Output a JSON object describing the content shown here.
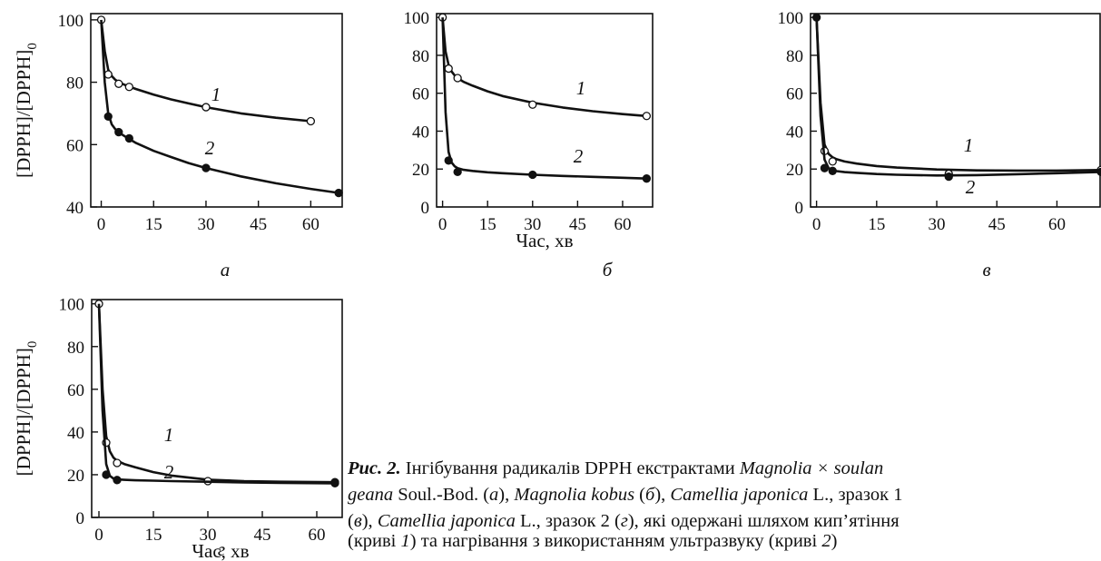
{
  "figure": {
    "ylabel": "[DPPH]/[DPPH]",
    "ylabel_sub": "0",
    "xlabel": "Час, хв",
    "caption": {
      "label": "Рис. 2.",
      "line1_text": " Інгібування радикалів DPPH екстрактами ",
      "line1_species": "Magnolia × soulan",
      "line2_species_end": "geana",
      "line2_text": " Soul.-Bod. (",
      "line2_a": "а",
      "line2_text2": "), ",
      "line2_species2": "Magnolia kobus",
      "line2_text3": " (",
      "line2_b": "б",
      "line2_text4": "), ",
      "line2_species3": "Camellia japonica",
      "line2_text5": " L., зразок 1",
      "line3_text0": "(",
      "line3_v": "в",
      "line3_text1": "), ",
      "line3_species": "Camellia japonica",
      "line3_text2": " L., зразок 2 (",
      "line3_g": "г",
      "line3_text3": "), які одержані шляхом кип’ятіння",
      "line4_text0": "(криві ",
      "line4_c1": "1",
      "line4_text1": ") та нагрівання з використанням ультразвуку (криві ",
      "line4_c2": "2",
      "line4_text2": ")"
    }
  },
  "chart_data": [
    {
      "type": "line",
      "panel": "а",
      "xticks": [
        0,
        15,
        30,
        45,
        60
      ],
      "yticks": [
        40,
        60,
        80,
        100
      ],
      "xlim": [
        -3,
        69
      ],
      "ylim": [
        40,
        102
      ],
      "series": [
        {
          "name": "1",
          "marker": "open",
          "x": [
            0,
            2,
            5,
            8,
            30,
            60
          ],
          "y": [
            100,
            82.5,
            79.5,
            78.5,
            72,
            67.5
          ],
          "curve_x": [
            0,
            1,
            2,
            3,
            4,
            5,
            6,
            8,
            10,
            15,
            20,
            25,
            30,
            40,
            50,
            60
          ],
          "curve_y": [
            100,
            90,
            84,
            82,
            80.8,
            80.1,
            79.5,
            78.6,
            77.8,
            76,
            74.5,
            73.2,
            72,
            70,
            68.6,
            67.5
          ]
        },
        {
          "name": "2",
          "marker": "filled",
          "x": [
            2,
            5,
            8,
            30,
            68
          ],
          "y": [
            69,
            64,
            62,
            52.5,
            44.5
          ],
          "curve_x": [
            0,
            1,
            2,
            3,
            4,
            5,
            6,
            8,
            10,
            15,
            20,
            25,
            30,
            40,
            50,
            60,
            68
          ],
          "curve_y": [
            100,
            80,
            70,
            66.5,
            65,
            64,
            63.2,
            61.8,
            60.5,
            58,
            56,
            54.1,
            52.5,
            49.8,
            47.6,
            45.8,
            44.5
          ]
        }
      ]
    },
    {
      "type": "line",
      "panel": "б",
      "xticks": [
        0,
        15,
        30,
        45,
        60
      ],
      "yticks": [
        0,
        20,
        40,
        60,
        80,
        100
      ],
      "xlim": [
        -2,
        70
      ],
      "ylim": [
        0,
        102
      ],
      "series": [
        {
          "name": "1",
          "marker": "open",
          "x": [
            0,
            2,
            5,
            30,
            68
          ],
          "y": [
            100,
            73,
            68,
            54,
            48
          ],
          "curve_x": [
            0,
            1,
            2,
            3,
            4,
            5,
            7,
            10,
            15,
            20,
            30,
            40,
            50,
            60,
            68
          ],
          "curve_y": [
            100,
            82,
            75,
            71.5,
            69.5,
            68,
            66,
            64,
            61,
            58.5,
            55,
            52.5,
            50.5,
            49,
            48
          ]
        },
        {
          "name": "2",
          "marker": "filled",
          "x": [
            2,
            5,
            30,
            68
          ],
          "y": [
            24.5,
            18.5,
            17,
            15
          ],
          "curve_x": [
            0,
            1,
            2,
            3,
            4,
            5,
            7,
            10,
            15,
            20,
            30,
            40,
            50,
            60,
            68
          ],
          "curve_y": [
            100,
            50,
            29,
            23.5,
            21.5,
            20.5,
            19.6,
            19,
            18.3,
            17.8,
            17,
            16.4,
            15.9,
            15.4,
            15
          ]
        }
      ]
    },
    {
      "type": "line",
      "panel": "в",
      "xticks": [
        0,
        15,
        30,
        45,
        60
      ],
      "yticks": [
        0,
        20,
        40,
        60,
        80,
        100
      ],
      "xlim": [
        -1.5,
        71
      ],
      "ylim": [
        0,
        102
      ],
      "series": [
        {
          "name": "1",
          "marker": "open",
          "x": [
            2,
            4,
            33,
            71
          ],
          "y": [
            29.5,
            24,
            17.5,
            19.5
          ],
          "curve_x": [
            0,
            1,
            2,
            3,
            4,
            5,
            7,
            10,
            15,
            20,
            30,
            40,
            50,
            60,
            71
          ],
          "curve_y": [
            100,
            55,
            33,
            28,
            26.2,
            25.2,
            24,
            22.9,
            21.6,
            20.8,
            19.8,
            19.3,
            19.2,
            19.2,
            19.5
          ]
        },
        {
          "name": "2",
          "marker": "filled",
          "x": [
            0,
            2,
            4,
            33,
            71
          ],
          "y": [
            100,
            20.5,
            19,
            16,
            18.5
          ],
          "curve_x": [
            0,
            1,
            2,
            3,
            4,
            5,
            7,
            10,
            15,
            20,
            30,
            40,
            50,
            60,
            71
          ],
          "curve_y": [
            100,
            48,
            25,
            20.5,
            19.4,
            18.9,
            18.4,
            18,
            17.4,
            17,
            16.6,
            16.8,
            17.3,
            17.8,
            18.5
          ]
        }
      ]
    },
    {
      "type": "line",
      "panel": "г",
      "xticks": [
        0,
        15,
        30,
        45,
        60
      ],
      "yticks": [
        0,
        20,
        40,
        60,
        80,
        100
      ],
      "xlim": [
        -2,
        67
      ],
      "ylim": [
        0,
        102
      ],
      "series": [
        {
          "name": "1",
          "marker": "open",
          "x": [
            0,
            2,
            5,
            30,
            65
          ],
          "y": [
            100,
            35,
            25.5,
            17,
            16.5
          ],
          "curve_x": [
            0,
            1,
            2,
            3,
            4,
            5,
            7,
            10,
            15,
            20,
            30,
            40,
            50,
            65
          ],
          "curve_y": [
            100,
            60,
            38,
            31,
            28,
            26.5,
            25,
            23.5,
            21.2,
            19.6,
            17.7,
            17,
            16.7,
            16.5
          ]
        },
        {
          "name": "2",
          "marker": "filled",
          "x": [
            2,
            5,
            65
          ],
          "y": [
            20,
            17.5,
            16
          ],
          "curve_x": [
            0,
            1,
            2,
            3,
            4,
            5,
            7,
            10,
            15,
            20,
            30,
            40,
            50,
            65
          ],
          "curve_y": [
            100,
            50,
            25,
            19.5,
            18.2,
            17.8,
            17.6,
            17.4,
            17.2,
            17,
            16.7,
            16.4,
            16.2,
            16
          ]
        }
      ]
    }
  ]
}
